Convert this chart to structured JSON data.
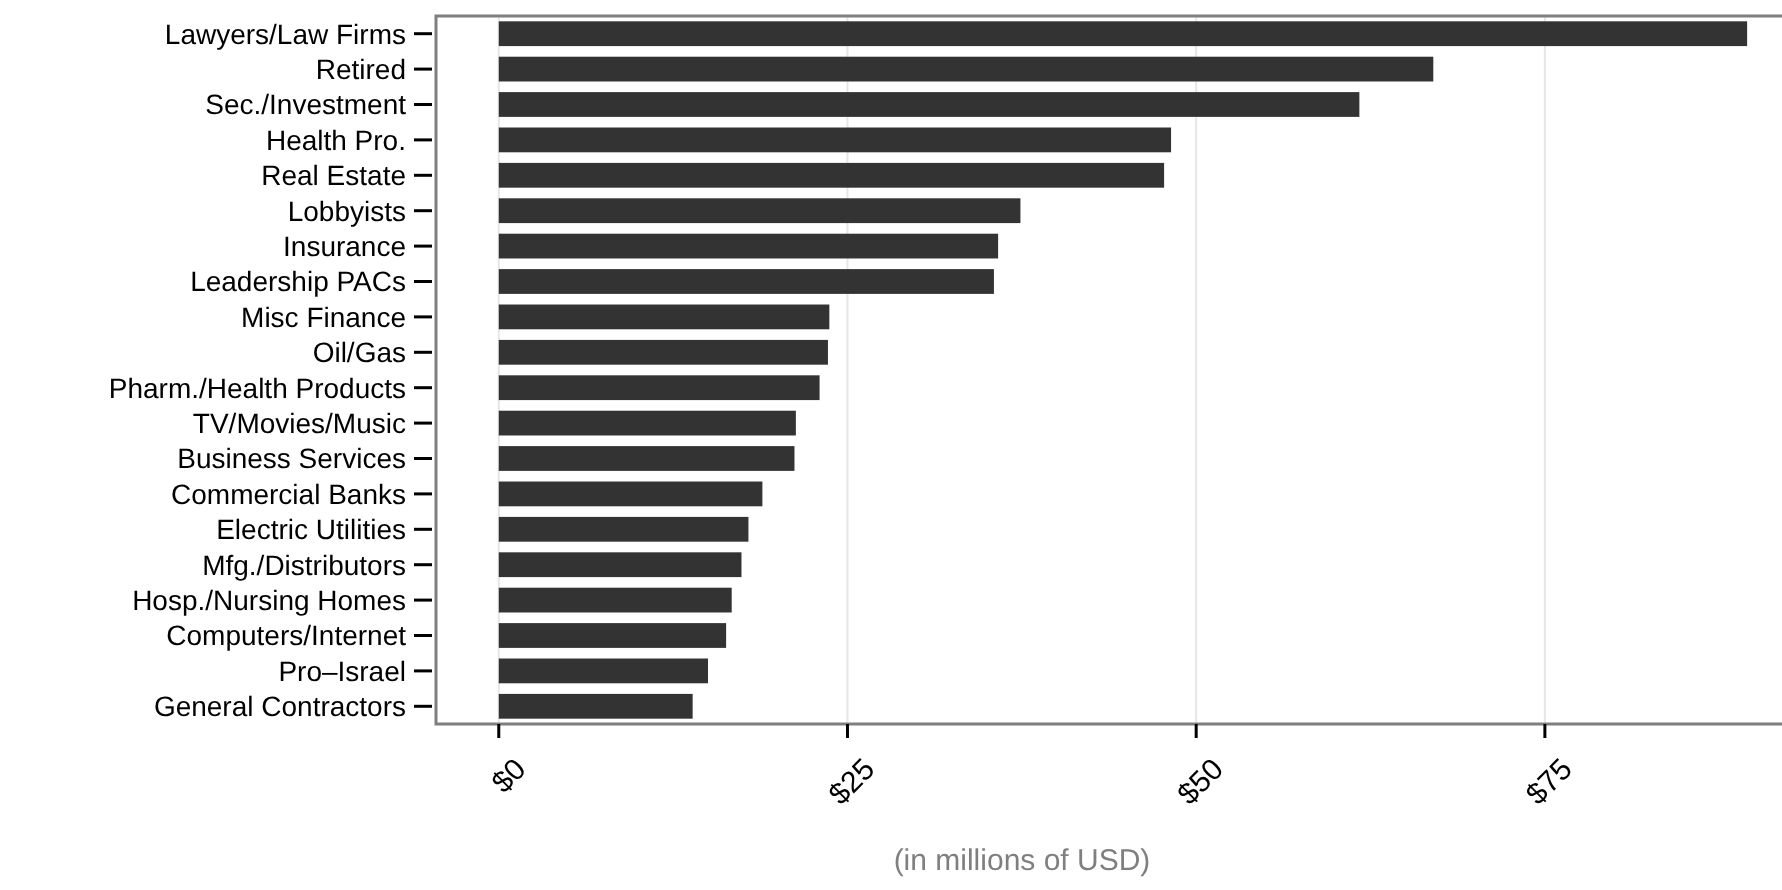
{
  "chart_data": {
    "type": "bar",
    "orientation": "horizontal",
    "xlabel": "(in millions of USD)",
    "categories": [
      "Lawyers/Law Firms",
      "Retired",
      "Sec./Investment",
      "Health Pro.",
      "Real Estate",
      "Lobbyists",
      "Insurance",
      "Leadership PACs",
      "Misc Finance",
      "Oil/Gas",
      "Pharm./Health Products",
      "TV/Movies/Music",
      "Business Services",
      "Commercial Banks",
      "Electric Utilities",
      "Mfg./Distributors",
      "Hosp./Nursing Homes",
      "Computers/Internet",
      "Pro–Israel",
      "General Contractors"
    ],
    "values": [
      89.5,
      67.0,
      61.7,
      48.2,
      47.7,
      37.4,
      35.8,
      35.5,
      23.7,
      23.6,
      23.0,
      21.3,
      21.2,
      18.9,
      17.9,
      17.4,
      16.7,
      16.3,
      15.0,
      13.9
    ],
    "color": "#333333",
    "xlim": [
      -4.5,
      92
    ],
    "xticks": [
      {
        "value": 0,
        "label": "$0"
      },
      {
        "value": 25,
        "label": "$25"
      },
      {
        "value": 50,
        "label": "$50"
      },
      {
        "value": 75,
        "label": "$75"
      }
    ],
    "grid": "x"
  }
}
